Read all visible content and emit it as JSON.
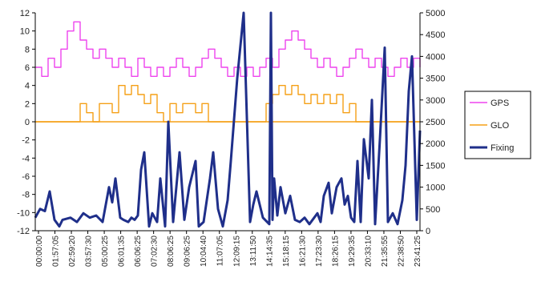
{
  "chart_data": {
    "type": "line",
    "title": "",
    "xlabel": "",
    "ylabel": "",
    "ylim": [
      -12,
      12
    ],
    "y_ticks": [
      12,
      10,
      8,
      6,
      4,
      2,
      0,
      -2,
      -4,
      -6,
      -8,
      -10,
      -12
    ],
    "y2lim": [
      0,
      5000
    ],
    "y2_ticks": [
      5000,
      4500,
      4000,
      3500,
      3000,
      2500,
      2000,
      1500,
      1000,
      500,
      0
    ],
    "x_ticks": [
      "00:00:00",
      "01:57:05",
      "02:59:20",
      "03:57:30",
      "05:00:25",
      "06:01:35",
      "06:06:25",
      "07:02:30",
      "08:06:25",
      "09:06:25",
      "10:04:40",
      "11:07:05",
      "12:09:15",
      "13:11:50",
      "14:14:35",
      "15:18:15",
      "16:21:30",
      "17:23:30",
      "18:26:15",
      "19:29:35",
      "20:33:10",
      "21:35:55",
      "22:38:50",
      "23:41:25"
    ],
    "legend_position": "right",
    "series": [
      {
        "name": "GPS",
        "axis": "left",
        "color": "#ee44ee",
        "x": [
          0,
          0.4,
          0.8,
          1.2,
          1.6,
          2,
          2.4,
          2.8,
          3.2,
          3.6,
          4,
          4.4,
          4.8,
          5.2,
          5.6,
          6,
          6.4,
          6.8,
          7.2,
          7.6,
          8,
          8.4,
          8.8,
          9.2,
          9.6,
          10,
          10.4,
          10.8,
          11.2,
          11.6,
          12,
          12.4,
          12.8,
          13.2,
          13.6,
          14,
          14.4,
          14.8,
          15.2,
          15.6,
          16,
          16.4,
          16.8,
          17.2,
          17.6,
          18,
          18.4,
          18.8,
          19.2,
          19.6,
          20,
          20.4,
          20.8,
          21.2,
          21.6,
          22,
          22.4,
          22.8,
          23.2,
          23.6,
          24
        ],
        "values": [
          6,
          5,
          7,
          6,
          8,
          10,
          11,
          9,
          8,
          7,
          8,
          7,
          6,
          7,
          6,
          5,
          7,
          6,
          5,
          6,
          5,
          6,
          7,
          6,
          5,
          6,
          7,
          8,
          7,
          6,
          5,
          6,
          5,
          6,
          5,
          6,
          7,
          6,
          8,
          9,
          10,
          9,
          8,
          7,
          6,
          7,
          6,
          5,
          6,
          7,
          8,
          7,
          6,
          7,
          6,
          5,
          6,
          7,
          6,
          7,
          6
        ]
      },
      {
        "name": "GLO",
        "axis": "left",
        "color": "#f5a017",
        "x": [
          0,
          0.4,
          0.8,
          1.2,
          1.6,
          2,
          2.4,
          2.8,
          3.2,
          3.6,
          4,
          4.4,
          4.8,
          5.2,
          5.6,
          6,
          6.4,
          6.8,
          7.2,
          7.6,
          8,
          8.4,
          8.8,
          9.2,
          9.6,
          10,
          10.4,
          10.8,
          11.2,
          11.6,
          12,
          12.4,
          12.8,
          13.2,
          13.6,
          14,
          14.4,
          14.8,
          15.2,
          15.6,
          16,
          16.4,
          16.8,
          17.2,
          17.6,
          18,
          18.4,
          18.8,
          19.2,
          19.6,
          20,
          20.4,
          20.8,
          21.2,
          21.6,
          22,
          22.4,
          22.8,
          23.2,
          23.6,
          24
        ],
        "values": [
          0,
          0,
          0,
          0,
          0,
          0,
          0,
          2,
          1,
          0,
          2,
          2,
          1,
          4,
          3,
          4,
          3,
          2,
          3,
          1,
          0,
          2,
          1,
          2,
          2,
          1,
          2,
          0,
          0,
          0,
          0,
          0,
          0,
          0,
          0,
          0,
          2,
          3,
          4,
          3,
          4,
          3,
          2,
          3,
          2,
          3,
          2,
          3,
          1,
          2,
          0,
          0,
          0,
          0,
          0,
          0,
          0,
          0,
          0,
          0,
          0
        ]
      },
      {
        "name": "Fixing",
        "axis": "right",
        "color": "#1f2f8a",
        "x": [
          0,
          0.3,
          0.6,
          0.9,
          1.2,
          1.4,
          1.5,
          1.7,
          2.2,
          2.6,
          3,
          3.4,
          3.8,
          4.2,
          4.4,
          4.6,
          4.8,
          5,
          5.3,
          5.5,
          5.8,
          6,
          6.2,
          6.4,
          6.6,
          6.8,
          7.1,
          7.3,
          7.6,
          7.8,
          8.1,
          8.3,
          8.6,
          8.8,
          9,
          9.3,
          9.6,
          10,
          10.2,
          10.5,
          10.9,
          11.1,
          11.4,
          11.7,
          12,
          12.2,
          12.6,
          13,
          13.4,
          13.6,
          13.8,
          14.2,
          14.6,
          14.7,
          14.8,
          14.9,
          15.1,
          15.3,
          15.6,
          15.9,
          16.2,
          16.5,
          16.8,
          17.1,
          17.4,
          17.6,
          17.8,
          18,
          18.3,
          18.5,
          18.8,
          19.1,
          19.3,
          19.5,
          19.7,
          19.9,
          20.1,
          20.3,
          20.5,
          20.8,
          21,
          21.2,
          21.5,
          21.8,
          22,
          22.3,
          22.6,
          22.9,
          23.1,
          23.3,
          23.5,
          23.8,
          24
        ],
        "values": [
          300,
          500,
          450,
          900,
          250,
          150,
          100,
          250,
          300,
          200,
          400,
          300,
          350,
          200,
          600,
          1000,
          650,
          1200,
          300,
          250,
          200,
          300,
          250,
          350,
          1400,
          1800,
          100,
          400,
          200,
          1200,
          100,
          2500,
          200,
          1000,
          1800,
          250,
          1000,
          1600,
          100,
          200,
          1200,
          1800,
          500,
          100,
          700,
          1600,
          3500,
          5000,
          200,
          600,
          900,
          300,
          150,
          5000,
          250,
          1200,
          350,
          1000,
          400,
          800,
          250,
          200,
          300,
          150,
          300,
          400,
          200,
          800,
          1100,
          400,
          1000,
          1200,
          600,
          800,
          300,
          200,
          1600,
          200,
          2100,
          1200,
          3000,
          150,
          2100,
          4200,
          200,
          400,
          150,
          700,
          1500,
          3200,
          4000,
          250,
          2300
        ]
      }
    ]
  }
}
